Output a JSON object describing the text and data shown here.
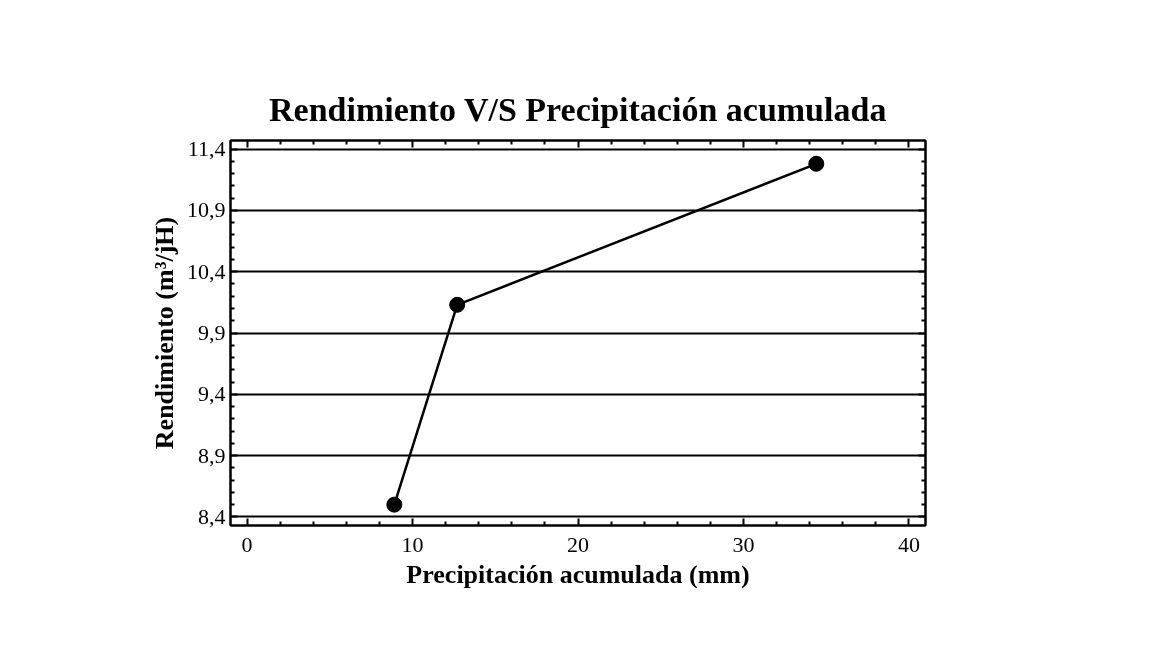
{
  "chart_data": {
    "type": "line",
    "title": "Rendimiento V/S Precipitación acumulada",
    "xlabel": "Precipitación acumulada (mm)",
    "ylabel": "Rendimiento (m³/jH)",
    "x": [
      8.9,
      12.7,
      34.4
    ],
    "series": [
      {
        "color": "#000000",
        "values": [
          8.5,
          10.13,
          11.28
        ]
      }
    ],
    "xlim": [
      -1,
      41
    ],
    "xticks": [
      0,
      10,
      20,
      30,
      40
    ],
    "ylim": [
      8.33,
      11.47
    ],
    "yticks": [
      {
        "value": 8.4,
        "label": "8,4"
      },
      {
        "value": 8.9,
        "label": "8,9"
      },
      {
        "value": 9.4,
        "label": "9,4"
      },
      {
        "value": 9.9,
        "label": "9,9"
      },
      {
        "value": 10.4,
        "label": "10,4"
      },
      {
        "value": 10.9,
        "label": "10,9"
      },
      {
        "value": 11.4,
        "label": "11,4"
      }
    ],
    "grid": "y",
    "marker": "circle",
    "line_style": "solid"
  }
}
